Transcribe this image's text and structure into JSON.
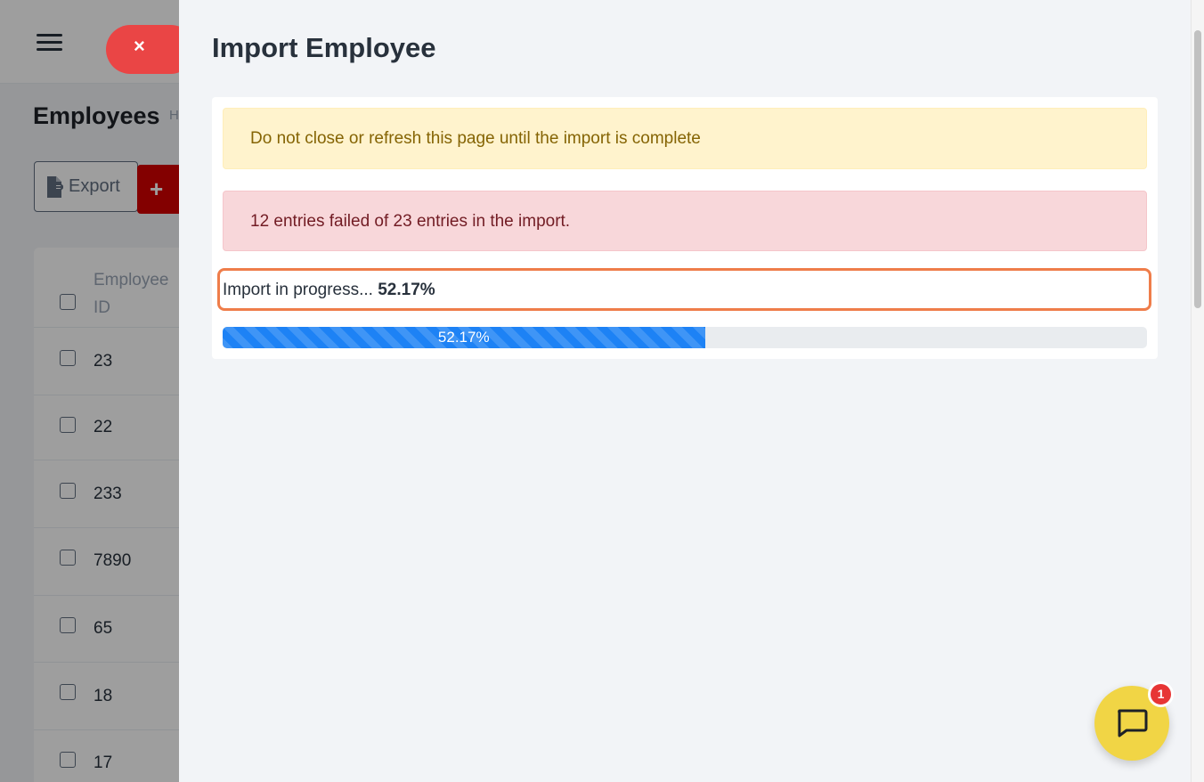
{
  "background": {
    "page_title": "Employees",
    "breadcrumb": "Home",
    "export_label": "Export",
    "add_label": "+",
    "table": {
      "column_header": "Employee ID",
      "rows": [
        "23",
        "22",
        "233",
        "7890",
        "65",
        "18",
        "17"
      ]
    }
  },
  "drawer": {
    "close_label": "×",
    "title": "Import Employee",
    "warning_text": "Do not close or refresh this page until the import is complete",
    "error_text": "12 entries failed of 23 entries in the import.",
    "progress_prefix": "Import in progress...",
    "progress_value": "52.17%",
    "progress_fraction": 0.5217,
    "progress_bar_label": "52.17%"
  },
  "chat": {
    "badge_count": "1",
    "icon": "chat-bubble-icon"
  },
  "colors": {
    "accent": "#1d82f5",
    "danger": "#d30000",
    "highlight": "#ef7d4a",
    "chat": "#f1d545"
  }
}
